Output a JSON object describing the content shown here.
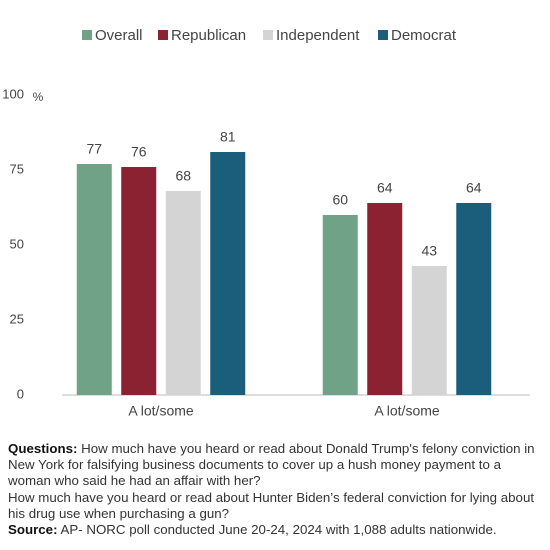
{
  "chart_data": {
    "type": "bar",
    "categories": [
      "A lot/some",
      "A lot/some"
    ],
    "series": [
      {
        "name": "Overall",
        "color": "#6fa287",
        "values": [
          77,
          60
        ]
      },
      {
        "name": "Republican",
        "color": "#8b2232",
        "values": [
          76,
          64
        ]
      },
      {
        "name": "Independent",
        "color": "#d4d4d4",
        "values": [
          68,
          43
        ]
      },
      {
        "name": "Democrat",
        "color": "#1b5e7b",
        "values": [
          81,
          64
        ]
      }
    ],
    "ylim": [
      0,
      100
    ],
    "yticks": [
      0,
      25,
      50,
      75,
      100
    ],
    "y_unit": "%",
    "grid": false,
    "legend": "top"
  },
  "notes": {
    "questions_label": "Questions:",
    "question_1": "How much have you heard or read about Donald Trump's felony conviction in New York for falsifying business documents to cover up a hush money payment to a woman who said he had an affair with her?",
    "question_2": "How much have you heard or read about Hunter Biden’s federal conviction for lying about his drug use when purchasing a gun?",
    "source_label": "Source:",
    "source": "AP- NORC poll conducted June 20-24, 2024 with 1,088 adults nationwide."
  }
}
